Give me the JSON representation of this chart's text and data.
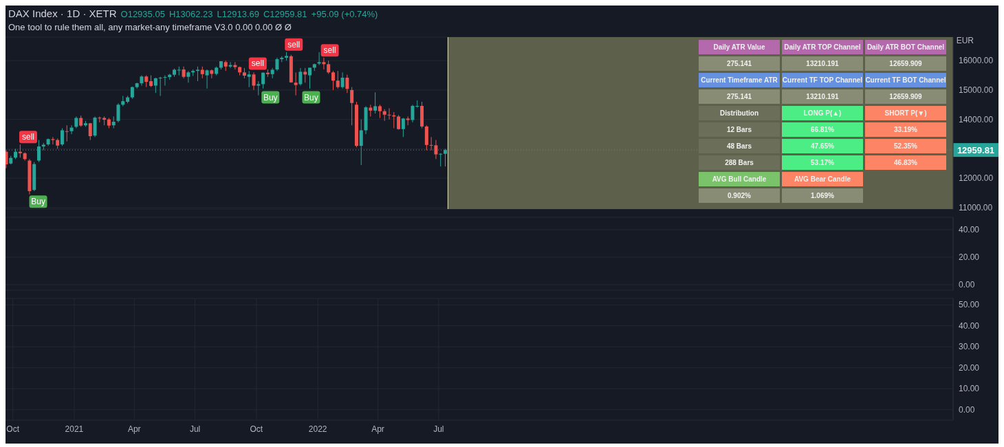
{
  "chart_data": [
    {
      "type": "candlestick",
      "title": "DAX Index · 1D · XETR",
      "subtitle": "One tool to rule them all, any market-any timeframe V3.0 0.00 0.00 Ø Ø",
      "ylabel": "EUR",
      "annotations": [
        "O12935.05",
        "H13062.23",
        "L12913.69",
        "C12959.81",
        "+95.09 (+0.74%)"
      ],
      "x": [
        "2020-09-21",
        "2020-09-28",
        "2020-10-05",
        "2020-10-12",
        "2020-10-19",
        "2020-10-26",
        "2020-11-02",
        "2020-11-09",
        "2020-11-16",
        "2020-11-23",
        "2020-11-30",
        "2020-12-07",
        "2020-12-14",
        "2020-12-21",
        "2020-12-28",
        "2021-01-04",
        "2021-01-11",
        "2021-01-18",
        "2021-01-25",
        "2021-02-01",
        "2021-02-08",
        "2021-02-15",
        "2021-02-22",
        "2021-03-01",
        "2021-03-08",
        "2021-03-15",
        "2021-03-22",
        "2021-03-29",
        "2021-04-05",
        "2021-04-12",
        "2021-04-19",
        "2021-04-26",
        "2021-05-03",
        "2021-05-10",
        "2021-05-17",
        "2021-05-24",
        "2021-05-31",
        "2021-06-07",
        "2021-06-14",
        "2021-06-21",
        "2021-06-28",
        "2021-07-05",
        "2021-07-12",
        "2021-07-19",
        "2021-07-26",
        "2021-08-02",
        "2021-08-09",
        "2021-08-16",
        "2021-08-23",
        "2021-08-30",
        "2021-09-06",
        "2021-09-13",
        "2021-09-20",
        "2021-09-27",
        "2021-10-04",
        "2021-10-11",
        "2021-10-18",
        "2021-10-25",
        "2021-11-01",
        "2021-11-08",
        "2021-11-15",
        "2021-11-22",
        "2021-11-29",
        "2021-12-06",
        "2021-12-13",
        "2021-12-20",
        "2021-12-27",
        "2022-01-03",
        "2022-01-10",
        "2022-01-17",
        "2022-01-24",
        "2022-01-31",
        "2022-02-07",
        "2022-02-14",
        "2022-02-21",
        "2022-02-28",
        "2022-03-07",
        "2022-03-14",
        "2022-03-21",
        "2022-03-28",
        "2022-04-04",
        "2022-04-11",
        "2022-04-18",
        "2022-04-25",
        "2022-05-02",
        "2022-05-09",
        "2022-05-16",
        "2022-05-23",
        "2022-05-30",
        "2022-06-06",
        "2022-06-13",
        "2022-06-20",
        "2022-06-27",
        "2022-07-04",
        "2022-07-11"
      ],
      "ohlc": [
        [
          12900,
          12950,
          12340,
          12470
        ],
        [
          12500,
          12760,
          12470,
          12690
        ],
        [
          12700,
          13000,
          12650,
          12900
        ],
        [
          12900,
          13150,
          12700,
          12850
        ],
        [
          12850,
          12880,
          12600,
          12650
        ],
        [
          12600,
          12650,
          11450,
          11560
        ],
        [
          11600,
          12550,
          11560,
          12480
        ],
        [
          12600,
          13300,
          12550,
          13080
        ],
        [
          13080,
          13200,
          12950,
          13140
        ],
        [
          13150,
          13350,
          13100,
          13330
        ],
        [
          13330,
          13400,
          13150,
          13300
        ],
        [
          13300,
          13350,
          13000,
          13110
        ],
        [
          13150,
          13700,
          13100,
          13630
        ],
        [
          13600,
          13800,
          13250,
          13590
        ],
        [
          13600,
          13800,
          13500,
          13720
        ],
        [
          13750,
          14100,
          13700,
          14050
        ],
        [
          14050,
          14130,
          13750,
          13790
        ],
        [
          13800,
          13950,
          13750,
          13870
        ],
        [
          13870,
          13880,
          13300,
          13430
        ],
        [
          13450,
          14100,
          13400,
          14060
        ],
        [
          14060,
          14100,
          13900,
          14050
        ],
        [
          14050,
          14100,
          13800,
          13990
        ],
        [
          14000,
          14050,
          13700,
          13790
        ],
        [
          13800,
          14100,
          13700,
          13920
        ],
        [
          13950,
          14550,
          13900,
          14500
        ],
        [
          14500,
          14800,
          14450,
          14620
        ],
        [
          14600,
          14800,
          14550,
          14750
        ],
        [
          14750,
          15120,
          14700,
          15100
        ],
        [
          15100,
          15250,
          15050,
          15230
        ],
        [
          15230,
          15500,
          15150,
          15460
        ],
        [
          15460,
          15500,
          15100,
          15280
        ],
        [
          15300,
          15500,
          15100,
          15140
        ],
        [
          15150,
          15420,
          14900,
          15400
        ],
        [
          15400,
          15450,
          14800,
          15420
        ],
        [
          15420,
          15500,
          15150,
          15440
        ],
        [
          15440,
          15550,
          15350,
          15520
        ],
        [
          15520,
          15730,
          15450,
          15690
        ],
        [
          15690,
          15800,
          15500,
          15690
        ],
        [
          15700,
          15800,
          15400,
          15450
        ],
        [
          15450,
          15650,
          15250,
          15600
        ],
        [
          15600,
          15700,
          15480,
          15650
        ],
        [
          15650,
          15800,
          15300,
          15690
        ],
        [
          15690,
          15800,
          15400,
          15540
        ],
        [
          15500,
          15700,
          15050,
          15670
        ],
        [
          15670,
          15700,
          15400,
          15550
        ],
        [
          15550,
          15800,
          15500,
          15760
        ],
        [
          15760,
          15980,
          15700,
          15980
        ],
        [
          15950,
          16000,
          15650,
          15800
        ],
        [
          15800,
          15950,
          15750,
          15850
        ],
        [
          15850,
          15950,
          15700,
          15780
        ],
        [
          15780,
          15800,
          15500,
          15600
        ],
        [
          15600,
          15750,
          15400,
          15490
        ],
        [
          15450,
          15650,
          15100,
          15530
        ],
        [
          15530,
          15600,
          15000,
          15150
        ],
        [
          15150,
          15300,
          14820,
          15200
        ],
        [
          15200,
          15600,
          15050,
          15590
        ],
        [
          15590,
          15700,
          15450,
          15540
        ],
        [
          15540,
          15750,
          15400,
          15690
        ],
        [
          15700,
          16100,
          15650,
          16050
        ],
        [
          16050,
          16150,
          15950,
          16100
        ],
        [
          16100,
          16290,
          16000,
          16160
        ],
        [
          16150,
          16200,
          15250,
          15260
        ],
        [
          15250,
          15600,
          14820,
          15170
        ],
        [
          15200,
          15750,
          15150,
          15620
        ],
        [
          15620,
          15750,
          15250,
          15530
        ],
        [
          15500,
          15760,
          15050,
          15760
        ],
        [
          15760,
          15900,
          15650,
          15880
        ],
        [
          15900,
          16290,
          15850,
          15950
        ],
        [
          15950,
          16100,
          15700,
          15880
        ],
        [
          15880,
          16000,
          15550,
          15600
        ],
        [
          15600,
          15650,
          15000,
          15320
        ],
        [
          15320,
          15650,
          15050,
          15100
        ],
        [
          15100,
          15600,
          15050,
          15420
        ],
        [
          15420,
          15520,
          14900,
          15040
        ],
        [
          15000,
          15100,
          13800,
          14560
        ],
        [
          14500,
          14600,
          13050,
          13100
        ],
        [
          13100,
          14000,
          12450,
          13630
        ],
        [
          13630,
          14450,
          13500,
          14410
        ],
        [
          14400,
          14500,
          14100,
          14300
        ],
        [
          14300,
          14920,
          14200,
          14450
        ],
        [
          14450,
          14500,
          14050,
          14280
        ],
        [
          14280,
          14350,
          13950,
          14160
        ],
        [
          14160,
          14380,
          14000,
          14140
        ],
        [
          14140,
          14250,
          13700,
          14100
        ],
        [
          14100,
          14150,
          13650,
          13670
        ],
        [
          13670,
          14050,
          13400,
          14030
        ],
        [
          14030,
          14100,
          13800,
          13980
        ],
        [
          13980,
          14500,
          13900,
          14460
        ],
        [
          14460,
          14650,
          14400,
          14460
        ],
        [
          14460,
          14600,
          13700,
          13760
        ],
        [
          13760,
          13800,
          12950,
          13130
        ],
        [
          13130,
          13400,
          12950,
          13120
        ],
        [
          13120,
          13300,
          12650,
          12810
        ],
        [
          12810,
          12850,
          12400,
          12830
        ],
        [
          12830,
          13000,
          12400,
          12959.81
        ]
      ],
      "series": [
        {
          "type": "scatter",
          "name": "sell",
          "color": "#f23645",
          "x": [
            "2020-10-24",
            "2021-10-03",
            "2021-11-26",
            "2022-01-19"
          ],
          "values": [
            13400,
            15900,
            16550,
            16350
          ]
        },
        {
          "type": "scatter",
          "name": "Buy",
          "color": "#4caf50",
          "x": [
            "2020-11-08",
            "2021-10-22",
            "2021-12-22"
          ],
          "values": [
            11200,
            14750,
            14750
          ]
        }
      ],
      "xlim": [
        "2020-09-20",
        "2024-08-10"
      ],
      "xticks": [
        {
          "value": "2020-10-01",
          "label": null
        },
        {
          "value": "2021-01-01",
          "label": null
        },
        {
          "value": "2021-04-01",
          "label": null
        },
        {
          "value": "2021-07-01",
          "label": null
        },
        {
          "value": "2021-10-01",
          "label": null
        },
        {
          "value": "2022-01-01",
          "label": null
        },
        {
          "value": "2022-04-01",
          "label": null
        },
        {
          "value": "2022-07-01",
          "label": null
        }
      ],
      "ylim": [
        10950,
        16800
      ],
      "yticks": [
        {
          "value": 11000,
          "label": "11000.00"
        },
        {
          "value": 12000,
          "label": "12000.00"
        },
        {
          "value": 13000,
          "label": null
        },
        {
          "value": 14000,
          "label": "14000.00"
        },
        {
          "value": 15000,
          "label": "15000.00"
        },
        {
          "value": 16000,
          "label": "16000.00"
        }
      ],
      "ref_lines": [
        {
          "axis": "y",
          "value": 12959.81,
          "label": "12959.81",
          "color": "#26a69a",
          "line_style": "dotted"
        },
        {
          "axis": "x",
          "value": "2022-07-15",
          "color": "#ffff00"
        }
      ],
      "bands": [
        {
          "axis": "x",
          "from": "2022-07-15",
          "to": "2024-08-10",
          "color": "#5d604a"
        }
      ],
      "grid": true,
      "tick_labels": "y"
    },
    {
      "type": "other",
      "cell_labels": [
        [
          "Daily ATR Value",
          "Daily ATR TOP Channel",
          "Daily ATR BOT Channel"
        ],
        [
          "275.141",
          "13210.191",
          "12659.909"
        ],
        [
          "Current Timeframe ATR",
          "Current TF TOP Channel",
          "Current TF BOT Channel"
        ],
        [
          "275.141",
          "13210.191",
          "12659.909"
        ],
        [
          "Distribution",
          "LONG P(▲)",
          "SHORT P(▼)"
        ],
        [
          "12 Bars",
          "66.81%",
          "33.19%"
        ],
        [
          "48 Bars",
          "47.65%",
          "52.35%"
        ],
        [
          "288 Bars",
          "53.17%",
          "46.83%"
        ],
        [
          "AVG Bull Candle",
          "AVG Bear Candle",
          null
        ],
        [
          "0.902%",
          "1.069%",
          null
        ]
      ],
      "colors": [
        [
          "#b469ac",
          "#b469ac",
          "#b469ac"
        ],
        [
          "#888c74",
          "#888c74",
          "#888c74"
        ],
        [
          "#6591e0",
          "#6591e0",
          "#6591e0"
        ],
        [
          "#888c74",
          "#888c74",
          "#888c74"
        ],
        [
          "#6b6e58",
          "#4ded85",
          "#fd8566"
        ],
        [
          "#6b6e58",
          "#4ded85",
          "#fd8566"
        ],
        [
          "#6b6e58",
          "#4ded85",
          "#fd8566"
        ],
        [
          "#6b6e58",
          "#4ded85",
          "#fd8566"
        ],
        [
          "#7ac36a",
          "#fd8566",
          null
        ],
        [
          "#888c74",
          "#888c74",
          null
        ]
      ]
    },
    {
      "type": "line",
      "xlim": [
        "2020-09-20",
        "2024-08-10"
      ],
      "xticks": [
        {
          "value": "2020-10-01",
          "label": null
        },
        {
          "value": "2021-01-01",
          "label": null
        },
        {
          "value": "2021-04-01",
          "label": null
        },
        {
          "value": "2021-07-01",
          "label": null
        },
        {
          "value": "2021-10-01",
          "label": null
        },
        {
          "value": "2022-01-01",
          "label": null
        },
        {
          "value": "2022-04-01",
          "label": null
        },
        {
          "value": "2022-07-01",
          "label": null
        }
      ],
      "ylim": [
        -4,
        49
      ],
      "yticks": [
        {
          "value": 0,
          "label": "0.00"
        },
        {
          "value": 20,
          "label": "20.00"
        },
        {
          "value": 40,
          "label": "40.00"
        }
      ],
      "grid": true,
      "tick_labels": "y"
    },
    {
      "type": "line",
      "xlim": [
        "2020-09-20",
        "2024-08-10"
      ],
      "xticks": [
        {
          "value": "2020-10-01",
          "label": "Oct"
        },
        {
          "value": "2021-01-01",
          "label": "2021"
        },
        {
          "value": "2021-04-01",
          "label": "Apr"
        },
        {
          "value": "2021-07-01",
          "label": "Jul"
        },
        {
          "value": "2021-10-01",
          "label": "Oct"
        },
        {
          "value": "2022-01-01",
          "label": "2022"
        },
        {
          "value": "2022-04-01",
          "label": "Apr"
        },
        {
          "value": "2022-07-01",
          "label": "Jul"
        }
      ],
      "ylim": [
        -5,
        53
      ],
      "yticks": [
        {
          "value": 0,
          "label": "0.00"
        },
        {
          "value": 10,
          "label": "10.00"
        },
        {
          "value": 20,
          "label": "20.00"
        },
        {
          "value": 30,
          "label": "30.00"
        },
        {
          "value": 40,
          "label": "40.00"
        },
        {
          "value": 50,
          "label": "50.00"
        }
      ],
      "grid": true
    }
  ]
}
